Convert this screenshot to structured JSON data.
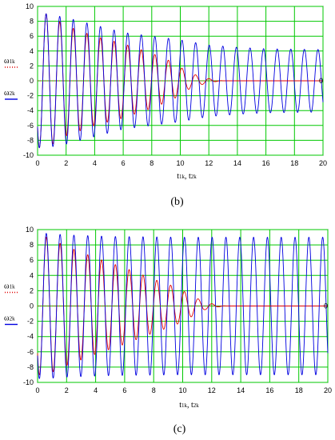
{
  "chart_data": [
    {
      "type": "line",
      "caption": "(b)",
      "xlabel": {
        "main": "t",
        "sub1": "1",
        "k1": "k",
        "sep": ", t",
        "sub2": "2",
        "k2": "k"
      },
      "ylabel": {
        "series1": {
          "main": "ω",
          "sub": "1",
          "k": "k"
        },
        "series2": {
          "main": "ω",
          "sub": "2",
          "k": "k"
        }
      },
      "xlim": [
        0,
        20
      ],
      "ylim": [
        -10,
        10
      ],
      "x_ticks": [
        "0",
        "2",
        "4",
        "6",
        "8",
        "10",
        "12",
        "14",
        "16",
        "18",
        "20"
      ],
      "y_ticks": [
        "10",
        "8",
        "6",
        "4",
        "2",
        "0",
        "-2",
        "-4",
        "-6",
        "-8",
        "-10"
      ],
      "end_label": "0",
      "grid": true,
      "grid_color": "#00c800",
      "series": [
        {
          "id": "omega1",
          "color": "#e00000",
          "style": "line",
          "frequency_hz": 1.05,
          "peaks": [
            [
              0.6,
              9.0
            ],
            [
              2.0,
              7.4
            ],
            [
              4.0,
              6.0
            ],
            [
              6.0,
              5.0
            ],
            [
              8.0,
              3.7
            ],
            [
              9.5,
              2.5
            ],
            [
              10.5,
              1.2
            ],
            [
              11.5,
              0.5
            ],
            [
              12.5,
              0.1
            ],
            [
              13.0,
              0.0
            ],
            [
              20.0,
              0.0
            ]
          ]
        },
        {
          "id": "omega2",
          "color": "#0000e0",
          "style": "line",
          "frequency_hz": 1.05,
          "peaks": [
            [
              0.6,
              9.0
            ],
            [
              2.0,
              8.5
            ],
            [
              4.0,
              7.5
            ],
            [
              6.0,
              6.5
            ],
            [
              8.0,
              6.0
            ],
            [
              10.0,
              5.5
            ],
            [
              12.0,
              4.8
            ],
            [
              14.0,
              4.5
            ],
            [
              16.0,
              4.3
            ],
            [
              20.0,
              4.2
            ]
          ]
        }
      ]
    },
    {
      "type": "line",
      "caption": "(c)",
      "xlabel": {
        "main": "t",
        "sub1": "1",
        "k1": "k",
        "sep": ", t",
        "sub2": "2",
        "k2": "k"
      },
      "ylabel": {
        "series1": {
          "main": "ω",
          "sub": "1",
          "k": "k"
        },
        "series2": {
          "main": "ω",
          "sub": "2",
          "k": "k"
        }
      },
      "xlim": [
        0,
        20
      ],
      "ylim": [
        -10,
        10
      ],
      "x_ticks": [
        "0",
        "2",
        "4",
        "6",
        "8",
        "10",
        "12",
        "14",
        "16",
        "18",
        "20"
      ],
      "y_ticks": [
        "10",
        "8",
        "6",
        "4",
        "2",
        "0",
        "-2",
        "-4",
        "-6",
        "-8",
        "-10"
      ],
      "end_label": "0",
      "grid": true,
      "grid_color": "#00c800",
      "series": [
        {
          "id": "omega1",
          "color": "#e00000",
          "style": "line",
          "frequency_hz": 1.05,
          "peaks": [
            [
              0.6,
              9.0
            ],
            [
              2.0,
              7.8
            ],
            [
              4.0,
              6.3
            ],
            [
              6.0,
              5.0
            ],
            [
              8.0,
              3.5
            ],
            [
              9.5,
              2.5
            ],
            [
              10.5,
              1.5
            ],
            [
              11.5,
              0.5
            ],
            [
              12.5,
              0.1
            ],
            [
              13.0,
              0.0
            ],
            [
              20.0,
              0.0
            ]
          ]
        },
        {
          "id": "omega2",
          "color": "#0000e0",
          "style": "line",
          "frequency_hz": 1.05,
          "peaks": [
            [
              0.6,
              9.5
            ],
            [
              2.0,
              9.3
            ],
            [
              5.0,
              9.1
            ],
            [
              10.0,
              9.0
            ],
            [
              15.0,
              9.0
            ],
            [
              20.0,
              9.0
            ]
          ]
        }
      ]
    }
  ]
}
